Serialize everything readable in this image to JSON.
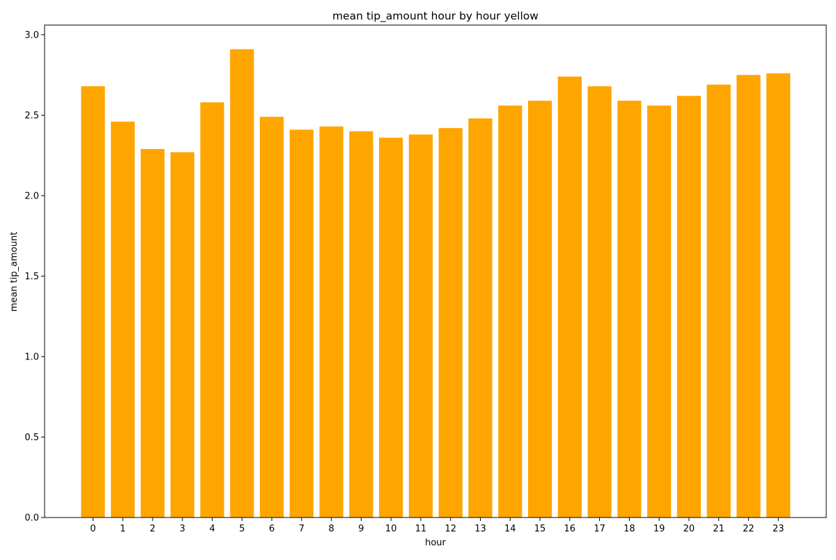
{
  "chart_data": {
    "type": "bar",
    "title": "mean tip_amount hour by hour yellow",
    "xlabel": "hour",
    "ylabel": "mean tip_amount",
    "bar_color": "#FFA500",
    "categories": [
      "0",
      "1",
      "2",
      "3",
      "4",
      "5",
      "6",
      "7",
      "8",
      "9",
      "10",
      "11",
      "12",
      "13",
      "14",
      "15",
      "16",
      "17",
      "18",
      "19",
      "20",
      "21",
      "22",
      "23"
    ],
    "values": [
      2.68,
      2.46,
      2.29,
      2.27,
      2.58,
      2.91,
      2.49,
      2.41,
      2.43,
      2.4,
      2.36,
      2.38,
      2.42,
      2.48,
      2.56,
      2.59,
      2.74,
      2.68,
      2.59,
      2.56,
      2.62,
      2.69,
      2.75,
      2.76
    ],
    "yticks": [
      0.0,
      0.5,
      1.0,
      1.5,
      2.0,
      2.5,
      3.0
    ],
    "ytick_labels": [
      "0.0",
      "0.5",
      "1.0",
      "1.5",
      "2.0",
      "2.5",
      "3.0"
    ],
    "ylim": [
      0,
      3.06
    ],
    "grid": false,
    "legend": "none"
  }
}
